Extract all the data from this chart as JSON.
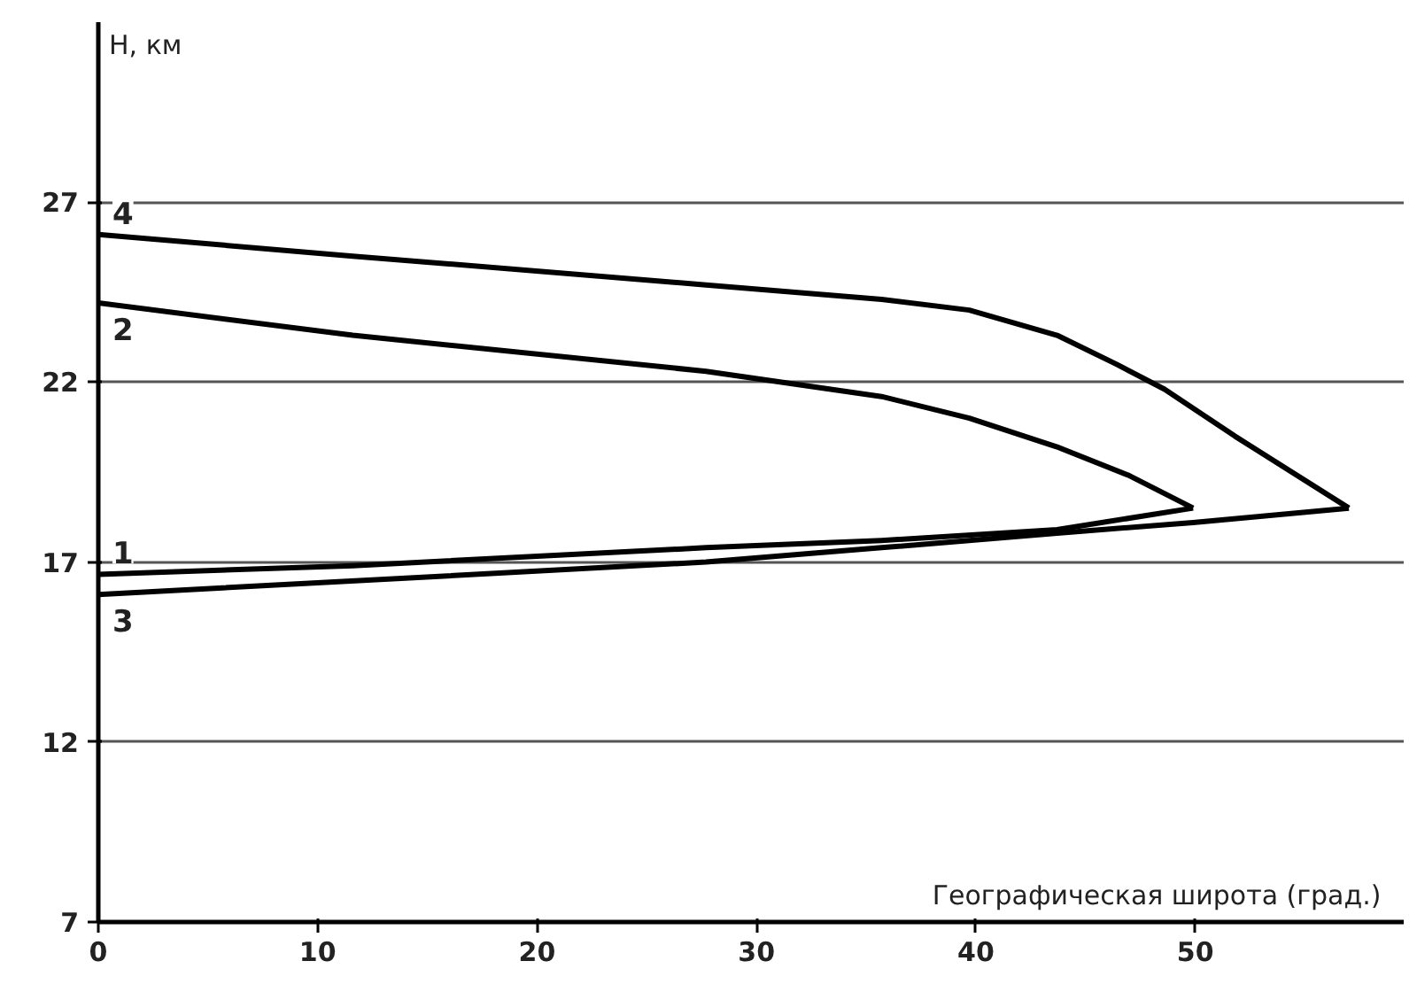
{
  "chart_data": {
    "type": "line",
    "xlabel": "Географическая  широта (град.)",
    "ylabel": "H, км",
    "xlim": [
      0,
      59.5
    ],
    "ylim": [
      7,
      32
    ],
    "xticks": [
      0,
      10,
      20,
      30,
      40,
      50
    ],
    "yticks": [
      7,
      12,
      17,
      22,
      27
    ],
    "grid": "y",
    "marker": "none",
    "line_style": "solid",
    "series": [
      {
        "name": "1",
        "color": "#000000",
        "x": [
          0,
          11.6,
          27.7,
          35.7,
          43.7,
          49.9
        ],
        "values": [
          16.66,
          16.9,
          17.4,
          17.6,
          17.9,
          18.5
        ]
      },
      {
        "name": "2",
        "color": "#000000",
        "x": [
          0,
          11.6,
          27.7,
          35.7,
          39.7,
          43.7,
          47,
          49.9
        ],
        "values": [
          24.2,
          23.3,
          22.3,
          21.6,
          21.0,
          20.2,
          19.4,
          18.5
        ]
      },
      {
        "name": "3",
        "color": "#000000",
        "x": [
          0,
          27.7,
          35.7,
          43.7,
          49.9,
          57.0
        ],
        "values": [
          16.1,
          17.0,
          17.4,
          17.8,
          18.1,
          18.5
        ]
      },
      {
        "name": "4",
        "color": "#000000",
        "x": [
          0,
          11.6,
          27.7,
          35.7,
          39.7,
          43.7,
          46.4,
          48.6,
          51.8,
          57.0
        ],
        "values": [
          26.1,
          25.5,
          24.7,
          24.3,
          24.0,
          23.3,
          22.5,
          21.8,
          20.5,
          18.5
        ]
      }
    ]
  }
}
